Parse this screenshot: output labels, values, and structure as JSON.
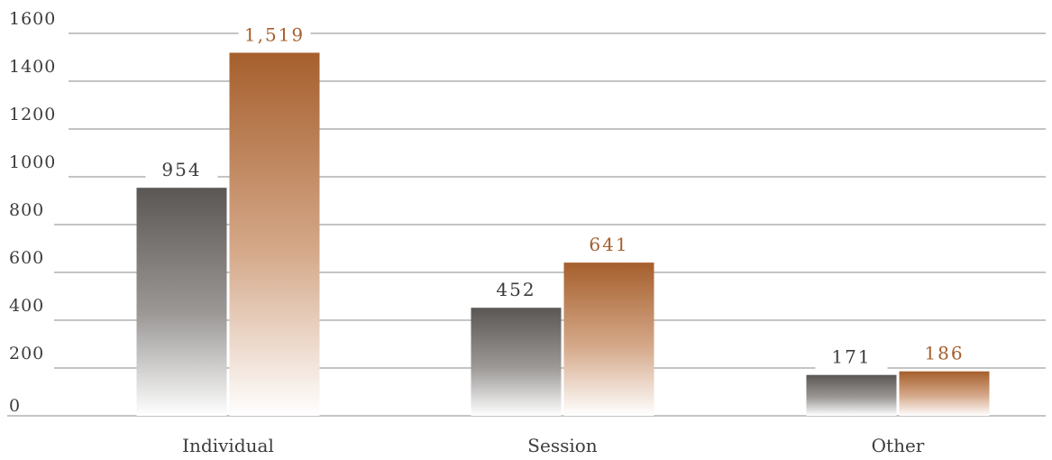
{
  "chart_data": {
    "type": "bar",
    "categories": [
      "Individual",
      "Session",
      "Other"
    ],
    "series": [
      {
        "values": [
          954,
          452,
          171
        ],
        "labels": [
          "954",
          "452",
          "171"
        ],
        "color": "#5a5755"
      },
      {
        "values": [
          1519,
          641,
          186
        ],
        "labels": [
          "1,519",
          "641",
          "186"
        ],
        "color": "#a65f2d"
      }
    ],
    "ylim": [
      0,
      1600
    ],
    "yticks": [
      0,
      200,
      400,
      600,
      800,
      1000,
      1200,
      1400,
      1600
    ],
    "ytick_labels": [
      "0",
      "200",
      "400",
      "600",
      "800",
      "1000",
      "1200",
      "1400",
      "1600"
    ],
    "grid": true,
    "legend": "none",
    "title": "",
    "xlabel": "",
    "ylabel": ""
  }
}
